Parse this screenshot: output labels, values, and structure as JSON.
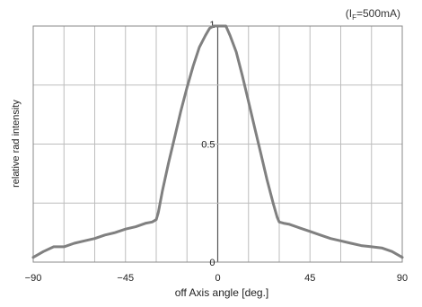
{
  "chart_data": {
    "type": "line",
    "annotation": {
      "prefix": "(I",
      "subscript": "F",
      "suffix": "=500mA)"
    },
    "xlabel": "off Axis angle [deg.]",
    "ylabel": "relative rad intensity",
    "xlim": [
      -90,
      90
    ],
    "ylim": [
      0,
      1
    ],
    "x_ticks": [
      -90,
      -45,
      0,
      45,
      90
    ],
    "x_tick_labels": [
      "−90",
      "−45",
      "0",
      "45",
      "90"
    ],
    "y_ticks": [
      0,
      0.5,
      1
    ],
    "y_tick_labels": [
      "0",
      "0.5",
      "1"
    ],
    "x_grid": [
      -90,
      -75,
      -60,
      -45,
      -30,
      -15,
      0,
      15,
      30,
      45,
      60,
      75,
      90
    ],
    "y_grid": [
      0,
      0.25,
      0.5,
      0.75,
      1
    ],
    "grid": true,
    "line_color": "#808080",
    "series": [
      {
        "x": [
          -90,
          -85,
          -80,
          -75,
          -70,
          -65,
          -60,
          -55,
          -50,
          -45,
          -40,
          -35,
          -32,
          -30,
          -29,
          -27,
          -24,
          -21,
          -18,
          -15,
          -12,
          -9,
          -6,
          -4,
          -2,
          0,
          2,
          4,
          6,
          9,
          12,
          15,
          18,
          21,
          24,
          27,
          29,
          30,
          32,
          35,
          40,
          45,
          50,
          55,
          60,
          65,
          70,
          75,
          80,
          85,
          90
        ],
        "y": [
          0.02,
          0.045,
          0.065,
          0.065,
          0.08,
          0.09,
          0.1,
          0.115,
          0.125,
          0.14,
          0.15,
          0.165,
          0.17,
          0.18,
          0.21,
          0.3,
          0.42,
          0.53,
          0.64,
          0.74,
          0.83,
          0.91,
          0.96,
          0.99,
          1.0,
          1.0,
          1.0,
          1.0,
          0.96,
          0.89,
          0.79,
          0.68,
          0.57,
          0.46,
          0.35,
          0.25,
          0.19,
          0.17,
          0.165,
          0.16,
          0.145,
          0.13,
          0.115,
          0.1,
          0.09,
          0.08,
          0.07,
          0.065,
          0.06,
          0.045,
          0.02
        ]
      }
    ]
  }
}
